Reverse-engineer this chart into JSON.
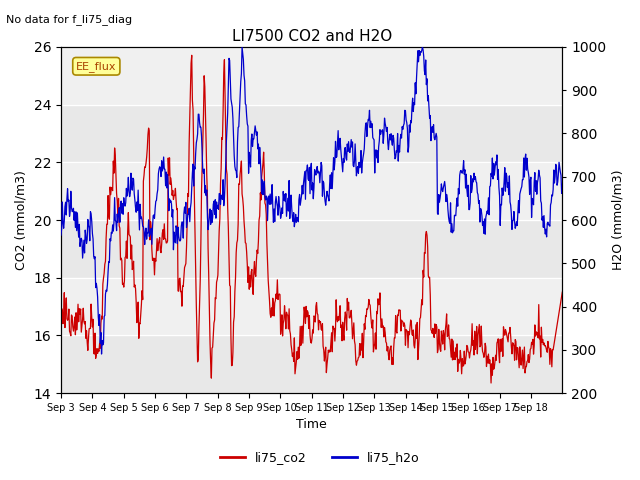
{
  "title": "LI7500 CO2 and H2O",
  "suptitle": "No data for f_li75_diag",
  "xlabel": "Time",
  "ylabel_left": "CO2 (mmol/m3)",
  "ylabel_right": "H2O (mmol/m3)",
  "ylim_left": [
    14,
    26
  ],
  "ylim_right": [
    200,
    1000
  ],
  "yticks_left": [
    14,
    16,
    18,
    20,
    22,
    24,
    26
  ],
  "yticks_right": [
    200,
    300,
    400,
    500,
    600,
    700,
    800,
    900,
    1000
  ],
  "xtick_labels": [
    "Sep 3",
    "Sep 4",
    "Sep 5",
    "Sep 6",
    "Sep 7",
    "Sep 8",
    "Sep 9",
    "Sep 10",
    "Sep 11",
    "Sep 12",
    "Sep 13",
    "Sep 14",
    "Sep 15",
    "Sep 16",
    "Sep 17",
    "Sep 18"
  ],
  "band_color": "#e8e8e8",
  "legend_entries": [
    "li75_co2",
    "li75_h2o"
  ],
  "line_colors": [
    "#cc0000",
    "#0000cc"
  ],
  "ee_flux_label": "EE_flux",
  "background_color": "#f0f0f0",
  "grid_color": "#ffffff",
  "figsize": [
    6.4,
    4.8
  ],
  "dpi": 100
}
